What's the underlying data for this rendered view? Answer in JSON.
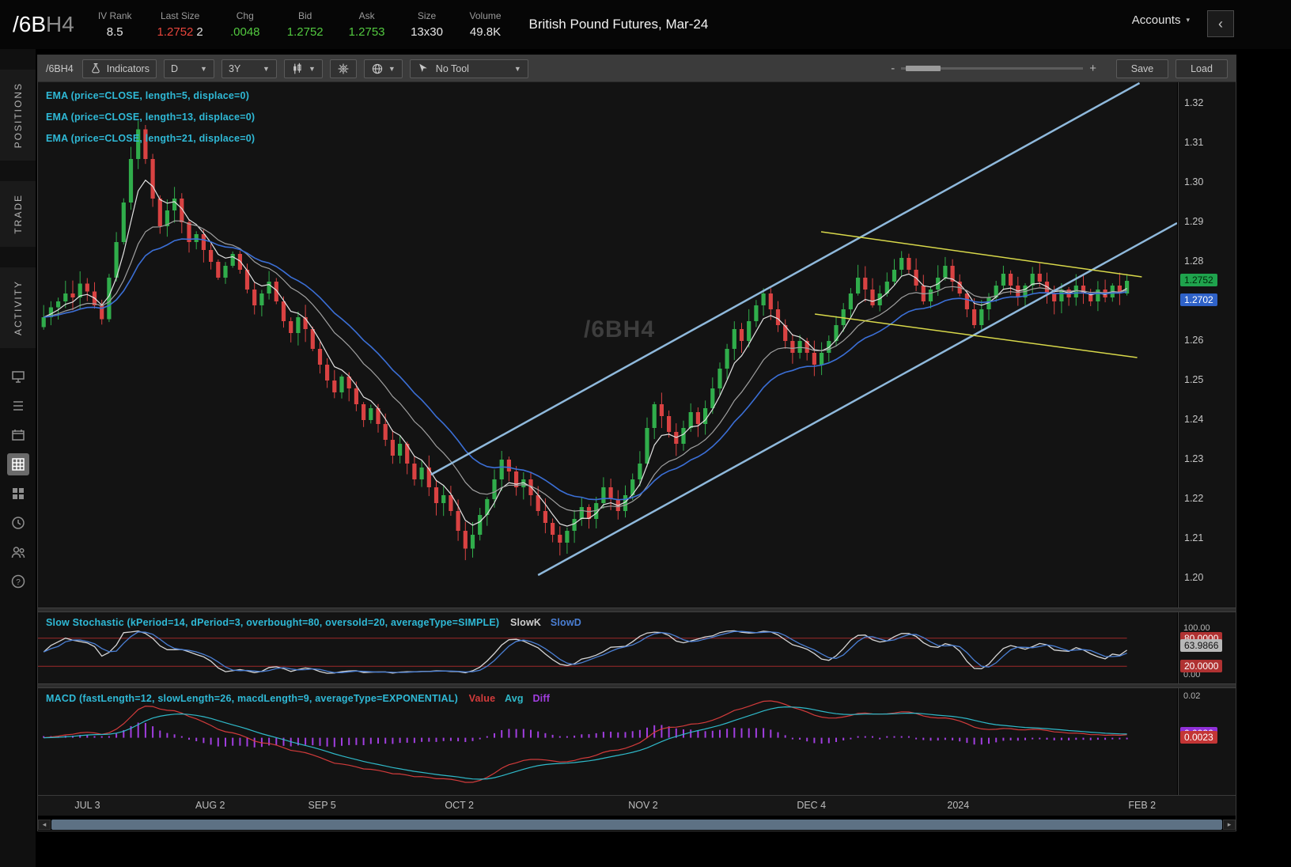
{
  "header": {
    "symbol": "/6B",
    "symbol_suffix": "H4",
    "stats": [
      {
        "label": "IV Rank",
        "value": "8.5",
        "color": "#e6e6e6"
      },
      {
        "label": "Last Size",
        "value": "1.2752",
        "value2": "2",
        "color": "#e8453c"
      },
      {
        "label": "Chg",
        "value": ".0048",
        "color": "#52c93f"
      },
      {
        "label": "Bid",
        "value": "1.2752",
        "color": "#52c93f"
      },
      {
        "label": "Ask",
        "value": "1.2753",
        "color": "#52c93f"
      },
      {
        "label": "Size",
        "value": "13x30",
        "color": "#e6e6e6"
      },
      {
        "label": "Volume",
        "value": "49.8K",
        "color": "#e6e6e6"
      }
    ],
    "title": "British Pound Futures, Mar-24",
    "accounts_label": "Accounts"
  },
  "sidebar": {
    "tabs": [
      "POSITIONS",
      "TRADE",
      "ACTIVITY"
    ],
    "active_icon": "chart-grid"
  },
  "toolbar": {
    "symbol_label": "/6BH4",
    "indicators_label": "Indicators",
    "timeframe": "D",
    "range": "3Y",
    "tool_label": "No Tool",
    "zoom_minus": "-",
    "zoom_plus": "+",
    "save_label": "Save",
    "load_label": "Load"
  },
  "studies": {
    "ema_labels": [
      "EMA (price=CLOSE, length=5, displace=0)",
      "EMA (price=CLOSE, length=13, displace=0)",
      "EMA (price=CLOSE, length=21, displace=0)"
    ],
    "stoch_label": "Slow Stochastic (kPeriod=14, dPeriod=3, overbought=80, oversold=20, averageType=SIMPLE)",
    "stoch_k_label": "SlowK",
    "stoch_d_label": "SlowD",
    "macd_label": "MACD (fastLength=12, slowLength=26, macdLength=9, averageType=EXPONENTIAL)",
    "macd_value_label": "Value",
    "macd_avg_label": "Avg",
    "macd_diff_label": "Diff"
  },
  "watermark": "/6BH4",
  "price_axis": {
    "labels": [
      "1.32",
      "1.31",
      "1.30",
      "1.29",
      "1.28",
      "1.27",
      "1.26",
      "1.25",
      "1.24",
      "1.23",
      "1.22",
      "1.21",
      "1.20"
    ],
    "bubbles": [
      {
        "text": "1.2752",
        "price": 1.2752,
        "bg": "#1fa34d",
        "fg": "#002609"
      },
      {
        "text": "1.2702",
        "price": 1.2702,
        "bg": "#2f62c8",
        "fg": "#ffffff"
      }
    ]
  },
  "stoch_axis": {
    "top_label": "100.00",
    "bottom_label": "0.00",
    "overbought": 80,
    "oversold": 20,
    "bubbles": [
      {
        "text": "80.0000",
        "v": 80,
        "bg": "#b03232",
        "fg": "#ffffff"
      },
      {
        "text": "20.0000",
        "v": 20,
        "bg": "#b03232",
        "fg": "#ffffff"
      },
      {
        "text": "63.9866",
        "v": 63.9866,
        "bg": "#b8b8b8",
        "fg": "#111111"
      }
    ]
  },
  "macd_axis": {
    "top_label": "0.02",
    "bubbles": [
      {
        "text": "0.0026",
        "bg": "#9030d8",
        "fg": "#ffffff"
      },
      {
        "text": "0.0023",
        "bg": "#c33535",
        "fg": "#ffffff"
      }
    ]
  },
  "x_axis": {
    "ticks": [
      {
        "label": "JUL 3",
        "f": 0.044
      },
      {
        "label": "AUG 2",
        "f": 0.15
      },
      {
        "label": "SEP 5",
        "f": 0.249
      },
      {
        "label": "OCT 2",
        "f": 0.369
      },
      {
        "label": "NOV 2",
        "f": 0.53
      },
      {
        "label": "DEC 4",
        "f": 0.678
      },
      {
        "label": "2024",
        "f": 0.81
      },
      {
        "label": "FEB 2",
        "f": 0.969
      }
    ]
  },
  "colors": {
    "up": "#30ad4b",
    "down": "#d94242",
    "ema5": "#e2e2e2",
    "ema13": "#a0a0a0",
    "ema21": "#3b6fd6",
    "channel": "#8fb9dc",
    "trend": "#d8d84a",
    "stoch_k": "#d6d6d6",
    "stoch_d": "#4a7fd4",
    "stoch_band": "#9e2b2b",
    "macd_value": "#d23b3b",
    "macd_avg": "#2fb9c9",
    "macd_diff": "#a13ee0",
    "study_label": "#2fb9d6"
  },
  "chart_data": {
    "type": "candlestick",
    "symbol": "/6BH4",
    "title": "British Pound Futures, Mar-24",
    "timeframe": "D",
    "range": "3Y",
    "ylim": [
      1.1926,
      1.3254
    ],
    "x_start": 0.005,
    "x_end": 0.956,
    "first_open": 1.2635,
    "closes": [
      1.266,
      1.2685,
      1.27,
      1.272,
      1.271,
      1.2745,
      1.2725,
      1.269,
      1.2655,
      1.276,
      1.285,
      1.295,
      1.306,
      1.3135,
      1.306,
      1.296,
      1.289,
      1.293,
      1.296,
      1.29,
      1.285,
      1.287,
      1.283,
      1.28,
      1.276,
      1.279,
      1.282,
      1.278,
      1.273,
      1.269,
      1.272,
      1.275,
      1.27,
      1.265,
      1.262,
      1.266,
      1.263,
      1.258,
      1.254,
      1.25,
      1.247,
      1.251,
      1.248,
      1.244,
      1.24,
      1.243,
      1.239,
      1.235,
      1.231,
      1.234,
      1.229,
      1.225,
      1.228,
      1.223,
      1.219,
      1.221,
      1.217,
      1.212,
      1.2075,
      1.211,
      1.216,
      1.22,
      1.225,
      1.23,
      1.227,
      1.223,
      1.225,
      1.221,
      1.217,
      1.214,
      1.211,
      1.209,
      1.212,
      1.215,
      1.218,
      1.215,
      1.219,
      1.223,
      1.22,
      1.217,
      1.221,
      1.225,
      1.229,
      1.238,
      1.244,
      1.241,
      1.237,
      1.234,
      1.238,
      1.242,
      1.239,
      1.243,
      1.248,
      1.253,
      1.258,
      1.263,
      1.26,
      1.265,
      1.269,
      1.272,
      1.268,
      1.264,
      1.26,
      1.257,
      1.26,
      1.257,
      1.254,
      1.257,
      1.26,
      1.264,
      1.268,
      1.272,
      1.276,
      1.273,
      1.269,
      1.272,
      1.275,
      1.278,
      1.281,
      1.278,
      1.274,
      1.27,
      1.273,
      1.276,
      1.279,
      1.275,
      1.272,
      1.268,
      1.264,
      1.268,
      1.271,
      1.274,
      1.277,
      1.274,
      1.271,
      1.274,
      1.277,
      1.275,
      1.272,
      1.27,
      1.273,
      1.271,
      1.274,
      1.272,
      1.27,
      1.273,
      1.271,
      1.274,
      1.272,
      1.2752
    ],
    "overlays": {
      "ema_lengths": [
        5,
        13,
        21
      ]
    },
    "drawings": {
      "channel_lines": [
        {
          "x1": 0.345,
          "p1": 1.2262,
          "x2": 0.967,
          "p2": 1.3252
        },
        {
          "x1": 0.439,
          "p1": 1.2008,
          "x2": 1.0,
          "p2": 1.2898
        }
      ],
      "trend_lines": [
        {
          "x1": 0.6875,
          "p1": 1.2876,
          "x2": 0.969,
          "p2": 1.2762
        },
        {
          "x1": 0.682,
          "p1": 1.2668,
          "x2": 0.965,
          "p2": 1.2558
        }
      ]
    }
  }
}
